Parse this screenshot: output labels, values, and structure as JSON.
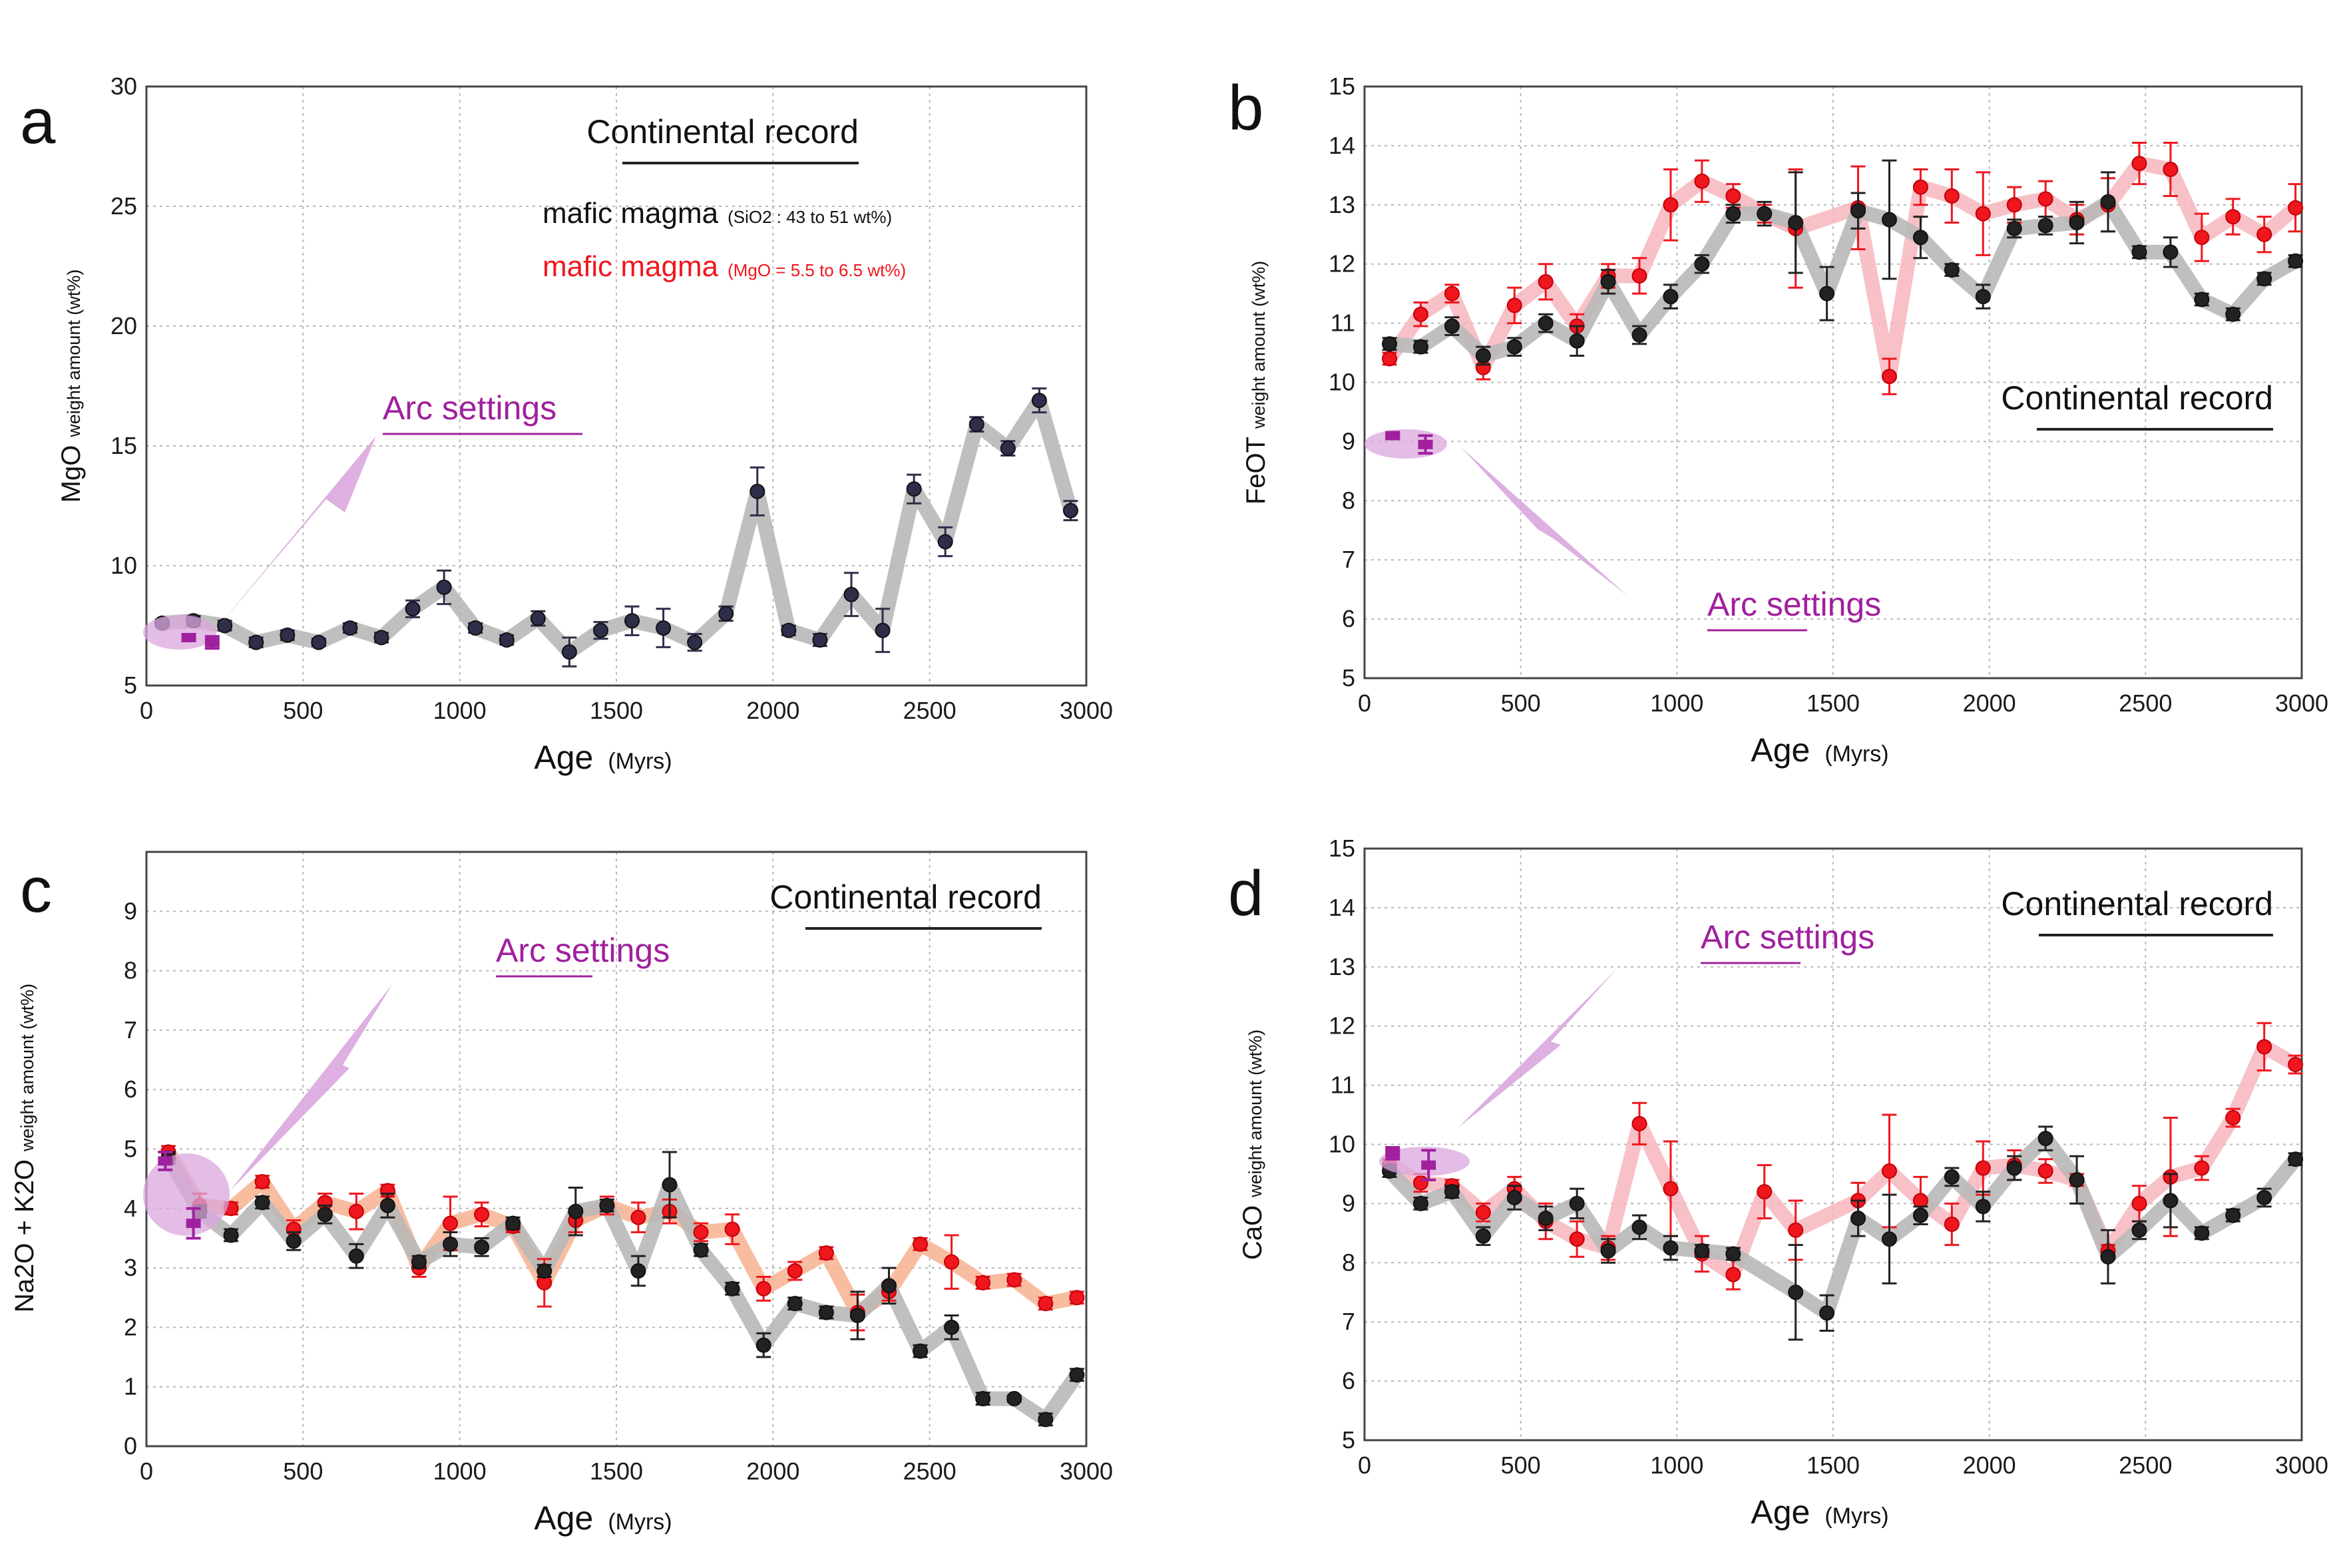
{
  "colors": {
    "black_series": "#222222",
    "black_band": "#b8b8b8",
    "red_series": "#f0161e",
    "red_band_pink": "#f6b6bd",
    "red_band_salmon": "#f7b191",
    "arc": "#a0209e",
    "arc_fill": "#d9a7de",
    "grid": "#b7b7b7",
    "frame": "#444444"
  },
  "chart_data": [
    {
      "panel": "a",
      "type": "line",
      "title": "",
      "xlabel": "Age",
      "xlabel_unit": "(Myrs)",
      "ylabel": "MgO",
      "ylabel_sub": "weight amount (wt%)",
      "xlim": [
        0,
        3000
      ],
      "ylim": [
        5,
        30
      ],
      "xticks": [
        "0",
        "500",
        "1000",
        "1500",
        "2000",
        "2500",
        "3000"
      ],
      "yticks": [
        "5",
        "10",
        "15",
        "20",
        "25",
        "30"
      ],
      "grid": true,
      "band_style": "pink",
      "annotation": "Continental record",
      "arc_label": "Arc settings",
      "legend": [
        {
          "label": "mafic magma",
          "note": "(SiO2 : 43 to 51 wt%)",
          "color": "#111111"
        },
        {
          "label": "mafic magma",
          "note": "(MgO = 5.5 to 6.5 wt%)",
          "color": "#f0161e"
        }
      ],
      "series": [
        {
          "name": "mafic magma (SiO2 : 43 to 51 wt%)",
          "color": "#2e2e4a",
          "x": [
            50,
            150,
            250,
            350,
            450,
            550,
            650,
            750,
            850,
            950,
            1050,
            1150,
            1250,
            1350,
            1450,
            1550,
            1650,
            1750,
            1850,
            1950,
            2050,
            2150,
            2250,
            2350,
            2450,
            2550,
            2650,
            2750,
            2850,
            2950
          ],
          "y": [
            7.6,
            7.7,
            7.5,
            6.8,
            7.1,
            6.8,
            7.4,
            7.0,
            8.2,
            9.1,
            7.4,
            6.9,
            7.8,
            6.4,
            7.3,
            7.7,
            7.4,
            6.8,
            8.0,
            13.1,
            7.3,
            6.9,
            8.8,
            7.3,
            13.2,
            11.0,
            15.9,
            14.9,
            16.9,
            12.3
          ],
          "err": [
            0.15,
            0.2,
            0.2,
            0.2,
            0.2,
            0.15,
            0.2,
            0.2,
            0.35,
            0.7,
            0.2,
            0.2,
            0.3,
            0.6,
            0.35,
            0.6,
            0.8,
            0.35,
            0.3,
            1.0,
            0.2,
            0.25,
            0.9,
            0.9,
            0.6,
            0.6,
            0.3,
            0.3,
            0.5,
            0.4
          ]
        }
      ],
      "arc": {
        "x": [
          135,
          210
        ],
        "y": [
          7.0,
          6.8
        ],
        "err": [
          0.0,
          0.25
        ]
      }
    },
    {
      "panel": "b",
      "type": "line",
      "title": "",
      "xlabel": "Age",
      "xlabel_unit": "(Myrs)",
      "ylabel": "FeOT",
      "ylabel_sub": "weight amount (wt%)",
      "xlim": [
        0,
        3000
      ],
      "ylim": [
        5,
        15
      ],
      "xticks": [
        "0",
        "500",
        "1000",
        "1500",
        "2000",
        "2500",
        "3000"
      ],
      "yticks": [
        "5",
        "6",
        "7",
        "8",
        "9",
        "10",
        "11",
        "12",
        "13",
        "14",
        "15"
      ],
      "grid": true,
      "band_style": "pink",
      "annotation": "Continental record",
      "arc_label": "Arc settings",
      "series": [
        {
          "name": "black",
          "color": "#222222",
          "x": [
            80,
            180,
            280,
            380,
            480,
            580,
            680,
            780,
            880,
            980,
            1080,
            1180,
            1280,
            1380,
            1480,
            1580,
            1680,
            1780,
            1880,
            1980,
            2080,
            2180,
            2280,
            2380,
            2480,
            2580,
            2680,
            2780,
            2880,
            2980
          ],
          "y": [
            10.65,
            10.6,
            10.95,
            10.45,
            10.6,
            11.0,
            10.7,
            11.7,
            10.8,
            11.45,
            12.0,
            12.85,
            12.85,
            12.7,
            11.5,
            12.9,
            12.75,
            12.45,
            11.9,
            11.45,
            12.6,
            12.65,
            12.7,
            13.05,
            12.2,
            12.2,
            11.4,
            11.15,
            11.75,
            12.05
          ],
          "err": [
            0.1,
            0.1,
            0.15,
            0.15,
            0.15,
            0.15,
            0.25,
            0.2,
            0.15,
            0.2,
            0.15,
            0.15,
            0.2,
            0.85,
            0.45,
            0.3,
            1.0,
            0.35,
            0.1,
            0.2,
            0.15,
            0.15,
            0.35,
            0.5,
            0.1,
            0.25,
            0.1,
            0.1,
            0.1,
            0.1
          ]
        },
        {
          "name": "red",
          "color": "#f0161e",
          "x": [
            80,
            180,
            280,
            380,
            480,
            580,
            680,
            780,
            880,
            980,
            1080,
            1180,
            1280,
            1380,
            1580,
            1680,
            1780,
            1880,
            1980,
            2080,
            2180,
            2280,
            2380,
            2480,
            2580,
            2680,
            2780,
            2880,
            2980
          ],
          "y": [
            10.4,
            11.15,
            11.5,
            10.25,
            11.3,
            11.7,
            10.95,
            11.8,
            11.8,
            13.0,
            13.4,
            13.15,
            12.85,
            12.6,
            12.95,
            10.1,
            13.3,
            13.15,
            12.85,
            13.0,
            13.1,
            12.75,
            13.0,
            13.7,
            13.6,
            12.45,
            12.8,
            12.5,
            12.95
          ],
          "err": [
            0.1,
            0.2,
            0.15,
            0.2,
            0.3,
            0.3,
            0.2,
            0.2,
            0.3,
            0.6,
            0.35,
            0.2,
            0.15,
            1.0,
            0.7,
            0.3,
            0.3,
            0.45,
            0.7,
            0.3,
            0.3,
            0.25,
            0.45,
            0.35,
            0.45,
            0.4,
            0.3,
            0.3,
            0.4
          ]
        }
      ],
      "arc": {
        "x": [
          90,
          195
        ],
        "y": [
          9.1,
          8.95
        ],
        "err": [
          0.05,
          0.15
        ]
      }
    },
    {
      "panel": "c",
      "type": "line",
      "title": "",
      "xlabel": "Age",
      "xlabel_unit": "(Myrs)",
      "ylabel": "Na2O + K2O",
      "ylabel_sub": "weight amount (wt%)",
      "xlim": [
        0,
        3000
      ],
      "ylim": [
        0,
        10
      ],
      "xticks": [
        "0",
        "500",
        "1000",
        "1500",
        "2000",
        "2500",
        "3000"
      ],
      "yticks": [
        "0",
        "1",
        "2",
        "3",
        "4",
        "5",
        "6",
        "7",
        "8",
        "9"
      ],
      "grid": true,
      "band_style": "salmon",
      "annotation": "Continental record",
      "arc_label": "Arc settings",
      "series": [
        {
          "name": "black",
          "color": "#222222",
          "x": [
            70,
            170,
            270,
            370,
            470,
            570,
            670,
            770,
            870,
            970,
            1070,
            1170,
            1270,
            1370,
            1470,
            1570,
            1670,
            1770,
            1870,
            1970,
            2070,
            2170,
            2270,
            2370,
            2470,
            2570,
            2670,
            2770,
            2870,
            2970
          ],
          "y": [
            4.85,
            3.95,
            3.55,
            4.1,
            3.45,
            3.9,
            3.2,
            4.05,
            3.1,
            3.4,
            3.35,
            3.75,
            2.95,
            3.95,
            4.05,
            2.95,
            4.4,
            3.3,
            2.65,
            1.7,
            2.4,
            2.25,
            2.2,
            2.7,
            1.6,
            2.0,
            0.8,
            0.8,
            0.45,
            1.2
          ],
          "err": [
            0.1,
            0.1,
            0.1,
            0.1,
            0.15,
            0.15,
            0.2,
            0.2,
            0.1,
            0.2,
            0.15,
            0.1,
            0.1,
            0.4,
            0.1,
            0.25,
            0.55,
            0.1,
            0.1,
            0.2,
            0.1,
            0.1,
            0.4,
            0.3,
            0.1,
            0.2,
            0.1,
            0.05,
            0.1,
            0.1
          ]
        },
        {
          "name": "red",
          "color": "#f0161e",
          "x": [
            70,
            170,
            270,
            370,
            470,
            570,
            670,
            770,
            870,
            970,
            1070,
            1170,
            1270,
            1370,
            1470,
            1570,
            1670,
            1770,
            1870,
            1970,
            2070,
            2170,
            2270,
            2370,
            2470,
            2570,
            2670,
            2770,
            2870,
            2970
          ],
          "y": [
            4.95,
            4.05,
            4.0,
            4.45,
            3.65,
            4.1,
            3.95,
            4.3,
            3.0,
            3.75,
            3.9,
            3.7,
            2.75,
            3.8,
            4.05,
            3.85,
            3.95,
            3.6,
            3.65,
            2.65,
            2.95,
            3.25,
            2.25,
            2.6,
            3.4,
            3.1,
            2.75,
            2.8,
            2.4,
            2.5
          ],
          "err": [
            0.1,
            0.2,
            0.1,
            0.1,
            0.15,
            0.15,
            0.3,
            0.1,
            0.15,
            0.45,
            0.2,
            0.1,
            0.4,
            0.2,
            0.15,
            0.25,
            0.2,
            0.15,
            0.25,
            0.2,
            0.15,
            0.1,
            0.3,
            0.15,
            0.1,
            0.45,
            0.1,
            0.1,
            0.1,
            0.1
          ]
        }
      ],
      "arc": {
        "x": [
          60,
          150
        ],
        "y": [
          4.8,
          3.75
        ],
        "err": [
          0.15,
          0.25
        ]
      }
    },
    {
      "panel": "d",
      "type": "line",
      "title": "",
      "xlabel": "Age",
      "xlabel_unit": "(Myrs)",
      "ylabel": "CaO",
      "ylabel_sub": "weight amount (wt%)",
      "xlim": [
        0,
        3000
      ],
      "ylim": [
        5,
        15
      ],
      "xticks": [
        "0",
        "500",
        "1000",
        "1500",
        "2000",
        "2500",
        "3000"
      ],
      "yticks": [
        "5",
        "6",
        "7",
        "8",
        "9",
        "10",
        "11",
        "12",
        "13",
        "14",
        "15"
      ],
      "grid": true,
      "band_style": "pink",
      "annotation": "Continental record",
      "arc_label": "Arc settings",
      "series": [
        {
          "name": "black",
          "color": "#222222",
          "x": [
            80,
            180,
            280,
            380,
            480,
            580,
            680,
            780,
            880,
            980,
            1080,
            1180,
            1380,
            1480,
            1580,
            1680,
            1780,
            1880,
            1980,
            2080,
            2180,
            2280,
            2380,
            2480,
            2580,
            2680,
            2780,
            2880,
            2980
          ],
          "y": [
            9.55,
            9.0,
            9.2,
            8.45,
            9.1,
            8.75,
            9.0,
            8.2,
            8.6,
            8.25,
            8.2,
            8.15,
            7.5,
            7.15,
            8.75,
            8.4,
            8.8,
            9.45,
            8.95,
            9.6,
            10.1,
            9.4,
            8.1,
            8.55,
            9.05,
            8.5,
            8.8,
            9.1,
            9.75
          ],
          "err": [
            0.1,
            0.1,
            0.1,
            0.15,
            0.2,
            0.2,
            0.25,
            0.2,
            0.2,
            0.2,
            0.1,
            0.1,
            0.8,
            0.3,
            0.3,
            0.75,
            0.15,
            0.15,
            0.25,
            0.2,
            0.2,
            0.4,
            0.45,
            0.15,
            0.45,
            0.1,
            0.1,
            0.15,
            0.1
          ]
        },
        {
          "name": "red",
          "color": "#f0161e",
          "x": [
            80,
            180,
            280,
            380,
            480,
            580,
            680,
            780,
            880,
            980,
            1080,
            1180,
            1280,
            1380,
            1580,
            1680,
            1780,
            1880,
            1980,
            2080,
            2180,
            2280,
            2380,
            2480,
            2580,
            2680,
            2780,
            2880,
            2980
          ],
          "y": [
            9.65,
            9.35,
            9.3,
            8.85,
            9.25,
            8.7,
            8.4,
            8.25,
            10.35,
            9.25,
            8.15,
            7.8,
            9.2,
            8.55,
            9.05,
            9.55,
            9.05,
            8.65,
            9.6,
            9.65,
            9.55,
            9.4,
            8.2,
            9.0,
            9.45,
            9.6,
            10.45,
            11.65,
            11.35
          ],
          "err": [
            0.1,
            0.15,
            0.1,
            0.15,
            0.2,
            0.3,
            0.3,
            0.2,
            0.35,
            0.8,
            0.3,
            0.25,
            0.45,
            0.5,
            0.3,
            0.95,
            0.4,
            0.35,
            0.45,
            0.25,
            0.2,
            0.1,
            0.1,
            0.3,
            1.0,
            0.2,
            0.15,
            0.4,
            0.15
          ]
        }
      ],
      "arc": {
        "x": [
          90,
          205
        ],
        "y": [
          9.85,
          9.65
        ],
        "err": [
          0.1,
          0.25
        ]
      }
    }
  ]
}
